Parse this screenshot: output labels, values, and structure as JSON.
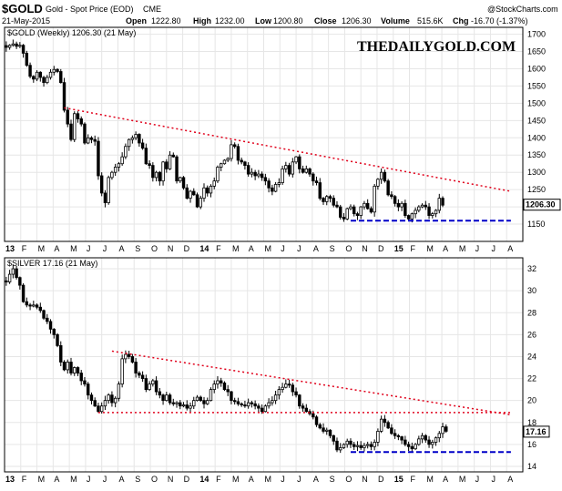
{
  "header": {
    "symbol": "$GOLD",
    "name": "Gold - Spot Price (EOD)",
    "exchange": "CME",
    "date": "21-May-2015",
    "source": "@StockCharts.com",
    "open_label": "Open",
    "open": "1222.80",
    "high_label": "High",
    "high": "1232.00",
    "low_label": "Low",
    "low": "1200.80",
    "close_label": "Close",
    "close": "1206.30",
    "volume_label": "Volume",
    "volume": "515.6K",
    "chg_label": "Chg",
    "chg": "-16.70 (-1.37%)"
  },
  "colors": {
    "candle": "#000000",
    "resistance": "#e0001a",
    "support": "#0000c8",
    "grid": "#e6e6e6",
    "frame": "#000000"
  },
  "chart_data": [
    {
      "type": "candlestick",
      "label": "$GOLD (Weekly) 1206.30 (21 May)",
      "watermark": "THEDAILYGOLD.COM",
      "last_value": "1206.30",
      "ylim": [
        1100,
        1720
      ],
      "yticks": [
        1150,
        1200,
        1250,
        1300,
        1350,
        1400,
        1450,
        1500,
        1550,
        1600,
        1650,
        1700
      ],
      "x_months": [
        "13",
        "F",
        "M",
        "A",
        "M",
        "J",
        "J",
        "A",
        "S",
        "O",
        "N",
        "D",
        "14",
        "F",
        "M",
        "A",
        "M",
        "J",
        "J",
        "A",
        "S",
        "O",
        "N",
        "D",
        "15",
        "F",
        "M",
        "A",
        "M",
        "J",
        "J",
        "A"
      ],
      "bold_months": [
        "13",
        "14",
        "15"
      ],
      "weeks_close": [
        1662,
        1668,
        1672,
        1665,
        1668,
        1645,
        1610,
        1578,
        1570,
        1590,
        1575,
        1560,
        1575,
        1590,
        1598,
        1592,
        1560,
        1480,
        1440,
        1395,
        1470,
        1455,
        1440,
        1385,
        1400,
        1395,
        1390,
        1290,
        1240,
        1212,
        1285,
        1300,
        1315,
        1325,
        1345,
        1375,
        1395,
        1400,
        1410,
        1385,
        1370,
        1325,
        1320,
        1285,
        1300,
        1275,
        1330,
        1310,
        1350,
        1345,
        1275,
        1285,
        1255,
        1225,
        1245,
        1235,
        1200,
        1225,
        1255,
        1240,
        1260,
        1275,
        1315,
        1325,
        1335,
        1340,
        1380,
        1375,
        1335,
        1330,
        1320,
        1295,
        1300,
        1290,
        1295,
        1285,
        1275,
        1255,
        1245,
        1265,
        1270,
        1310,
        1320,
        1295,
        1330,
        1345,
        1310,
        1300,
        1310,
        1295,
        1275,
        1270,
        1225,
        1215,
        1230,
        1225,
        1205,
        1200,
        1170,
        1165,
        1195,
        1200,
        1180,
        1175,
        1200,
        1210,
        1195,
        1185,
        1260,
        1280,
        1300,
        1275,
        1235,
        1230,
        1210,
        1200,
        1210,
        1175,
        1165,
        1180,
        1190,
        1200,
        1205,
        1200,
        1175,
        1180,
        1190,
        1225,
        1205
      ],
      "trendlines": [
        {
          "kind": "resistance",
          "style": "dotted",
          "from": [
            17,
            1487
          ],
          "to": [
            148,
            1245
          ]
        },
        {
          "kind": "support",
          "style": "dashed",
          "from": [
            101,
            1160
          ],
          "to": [
            148,
            1160
          ]
        }
      ]
    },
    {
      "type": "candlestick",
      "label": "$SILVER 17.16 (21 May)",
      "last_value": "17.16",
      "ylim": [
        13.5,
        33
      ],
      "yticks": [
        14,
        16,
        18,
        20,
        22,
        24,
        26,
        28,
        30,
        32
      ],
      "x_months": [
        "13",
        "F",
        "M",
        "A",
        "M",
        "J",
        "J",
        "A",
        "S",
        "O",
        "N",
        "D",
        "14",
        "F",
        "M",
        "A",
        "M",
        "J",
        "J",
        "A",
        "S",
        "O",
        "N",
        "D",
        "15",
        "F",
        "M",
        "A",
        "M",
        "J",
        "J",
        "A"
      ],
      "bold_months": [
        "13",
        "14",
        "15"
      ],
      "weeks_close": [
        30.8,
        31.5,
        32.0,
        31.2,
        30.5,
        29.0,
        28.7,
        28.6,
        28.7,
        28.5,
        28.2,
        27.5,
        27.2,
        26.5,
        26.0,
        25.0,
        23.5,
        22.8,
        23.5,
        22.5,
        23.0,
        22.5,
        21.8,
        21.5,
        20.5,
        20.0,
        19.5,
        19.0,
        19.5,
        20.0,
        20.5,
        19.8,
        20.2,
        21.5,
        23.8,
        24.2,
        24.0,
        23.5,
        22.5,
        22.3,
        22.0,
        21.0,
        21.5,
        21.8,
        20.8,
        20.5,
        20.0,
        20.5,
        19.8,
        19.7,
        19.8,
        19.5,
        19.6,
        19.3,
        19.5,
        20.0,
        20.3,
        20.0,
        19.7,
        20.0,
        21.0,
        21.5,
        21.8,
        21.6,
        21.0,
        20.8,
        20.0,
        19.9,
        19.7,
        19.6,
        19.5,
        19.8,
        19.7,
        19.5,
        19.3,
        19.0,
        19.5,
        19.8,
        20.0,
        20.5,
        21.0,
        21.2,
        21.5,
        21.4,
        20.8,
        20.5,
        19.5,
        19.3,
        19.0,
        18.8,
        18.5,
        17.8,
        17.5,
        17.2,
        17.3,
        16.8,
        16.3,
        15.5,
        15.7,
        16.0,
        16.3,
        16.0,
        15.8,
        15.9,
        15.7,
        15.9,
        16.0,
        15.8,
        16.2,
        17.2,
        18.3,
        18.0,
        17.5,
        17.0,
        16.8,
        16.7,
        16.4,
        16.0,
        15.8,
        15.6,
        16.0,
        16.5,
        16.8,
        16.4,
        16.0,
        16.2,
        16.6,
        17.0,
        17.6,
        17.2
      ],
      "trendlines": [
        {
          "kind": "resistance",
          "style": "dotted",
          "from": [
            31,
            24.5
          ],
          "to": [
            148,
            18.7
          ]
        },
        {
          "kind": "resistance",
          "style": "dotted",
          "from": [
            27,
            18.9
          ],
          "to": [
            148,
            18.9
          ]
        },
        {
          "kind": "support",
          "style": "dashed",
          "from": [
            101,
            15.3
          ],
          "to": [
            148,
            15.3
          ]
        }
      ]
    }
  ]
}
